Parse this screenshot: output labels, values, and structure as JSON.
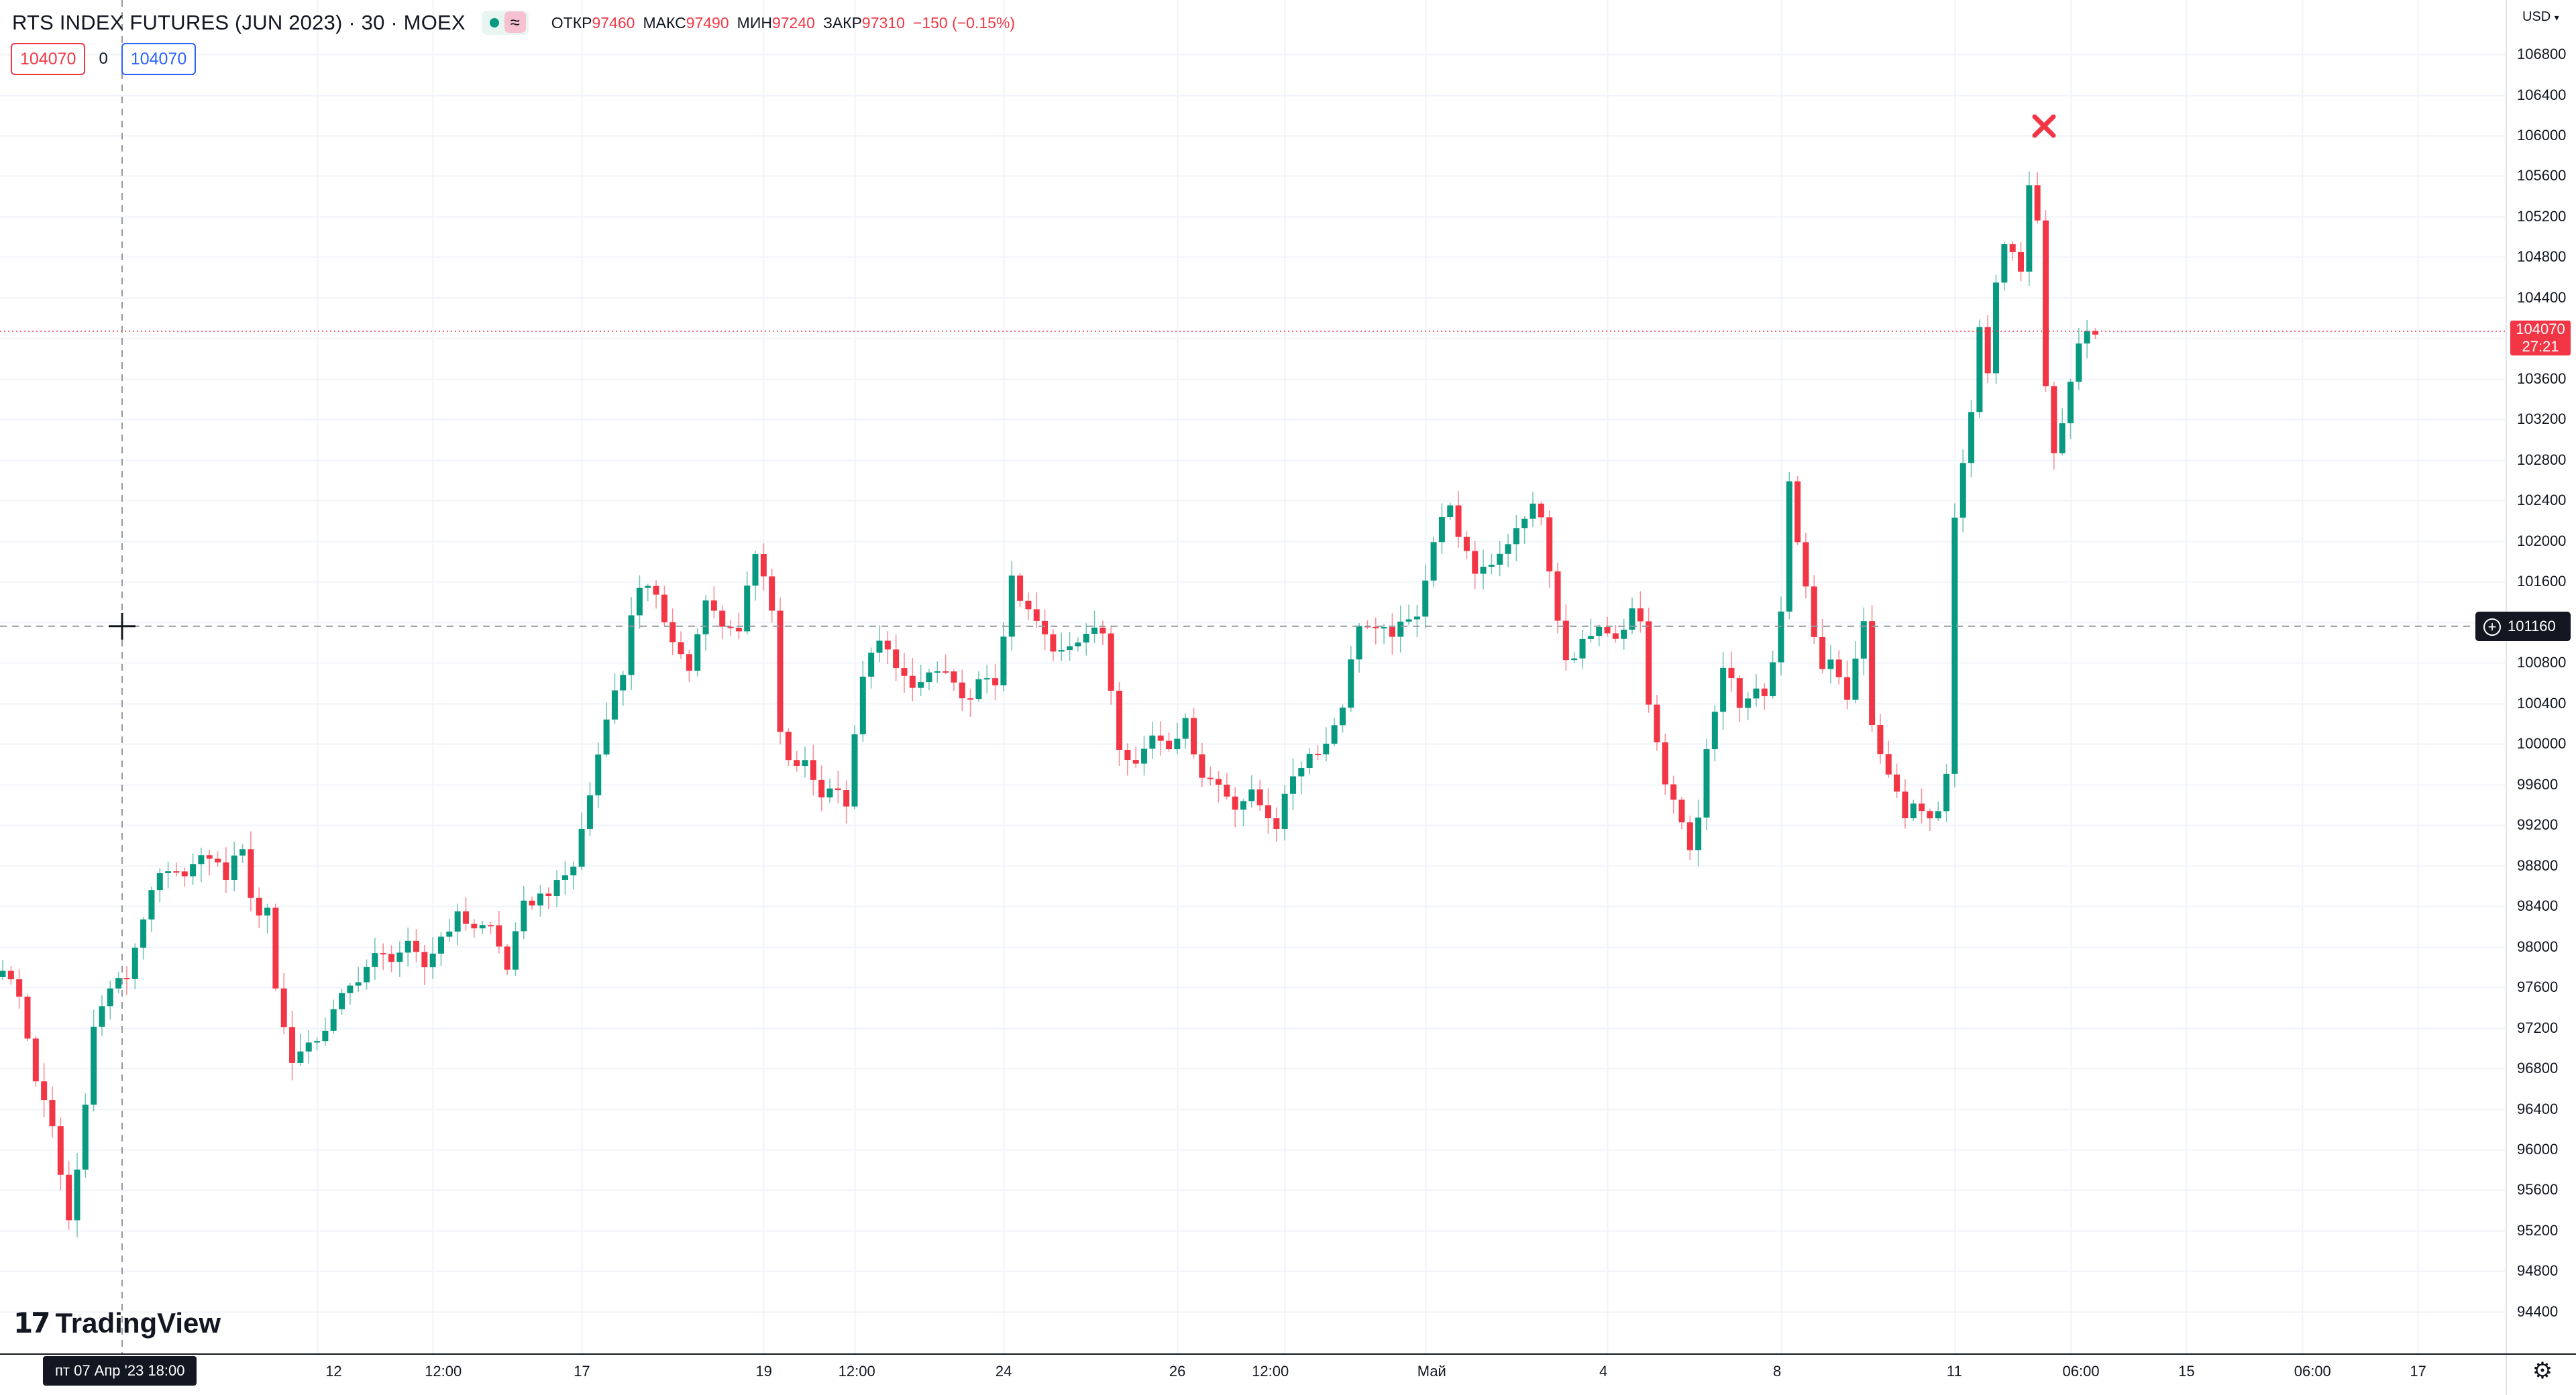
{
  "header": {
    "title": "RTS INDEX FUTURES (JUN 2023) · 30 · MOEX",
    "approx_symbol": "≈",
    "ohlc": [
      {
        "key": "ОТКР",
        "value": "97460"
      },
      {
        "key": "МАКС",
        "value": "97490"
      },
      {
        "key": "МИН",
        "value": "97240"
      },
      {
        "key": "ЗАКР",
        "value": "97310"
      }
    ],
    "change": "−150 (−0.15%)"
  },
  "trade": {
    "sell_price": "104070",
    "spread": "0",
    "buy_price": "104070"
  },
  "price_scale": {
    "currency": "USD",
    "last_price": "104070",
    "countdown": "27:21",
    "crosshair_price": "101160"
  },
  "time_scale": {
    "crosshair_time": "пт 07 Апр '23   18:00"
  },
  "brand": {
    "name": "TradingView"
  },
  "colors": {
    "up": "#089981",
    "down": "#f23645",
    "grid": "#f0f3fa",
    "crosshair": "#9598a1"
  },
  "icons": {
    "settings": "gear-icon",
    "marker": "close-icon",
    "crosshair": "crosshair-icon"
  },
  "chart_data": {
    "type": "candlestick",
    "title": "RTS INDEX FUTURES (JUN 2023) · 30 · MOEX",
    "timeframe": "30",
    "ylim": [
      94000,
      107200
    ],
    "y_ticks": [
      94400,
      94800,
      95200,
      95600,
      96000,
      96400,
      96800,
      97200,
      97600,
      98000,
      98400,
      98800,
      99200,
      99600,
      100000,
      100400,
      100800,
      101200,
      101600,
      102000,
      102400,
      102800,
      103200,
      103600,
      104000,
      104400,
      104800,
      105200,
      105600,
      106000,
      106400,
      106800
    ],
    "y_tick_labels": [
      "94400",
      "94800",
      "95200",
      "95600",
      "96000",
      "96400",
      "96800",
      "97200",
      "97600",
      "98000",
      "98400",
      "98800",
      "99200",
      "99600",
      "100000",
      "100400",
      "100800",
      "",
      "101600",
      "102000",
      "102400",
      "102800",
      "103200",
      "103600",
      "",
      "104400",
      "104800",
      "105200",
      "105600",
      "106000",
      "106400",
      "106800"
    ],
    "x_labels": [
      "12",
      "12:00",
      "17",
      "19",
      "12:00",
      "24",
      "26",
      "12:00",
      "Май",
      "4",
      "8",
      "11",
      "06:00",
      "15",
      "06:00",
      "17"
    ],
    "x_label_bar_index": [
      40,
      52,
      70,
      92,
      102,
      121,
      142,
      152,
      172,
      194,
      215,
      236,
      250,
      264,
      278,
      292
    ],
    "x_grid_bar_index": [
      38,
      52,
      70,
      92,
      103,
      121,
      142,
      155,
      172,
      194,
      215,
      236,
      250,
      264,
      278,
      292
    ],
    "price_path": [
      [
        0,
        97700
      ],
      [
        1,
        97800
      ],
      [
        3,
        97500
      ],
      [
        5,
        96700
      ],
      [
        7,
        96200
      ],
      [
        9,
        95300
      ],
      [
        10,
        95800
      ],
      [
        12,
        97200
      ],
      [
        14,
        97600
      ],
      [
        16,
        97700
      ],
      [
        18,
        98300
      ],
      [
        20,
        98700
      ],
      [
        22,
        98700
      ],
      [
        24,
        98800
      ],
      [
        26,
        98900
      ],
      [
        28,
        98700
      ],
      [
        30,
        99000
      ],
      [
        31,
        98500
      ],
      [
        32,
        98300
      ],
      [
        33,
        98400
      ],
      [
        34,
        97600
      ],
      [
        35,
        97200
      ],
      [
        36,
        96900
      ],
      [
        38,
        97000
      ],
      [
        40,
        97200
      ],
      [
        42,
        97500
      ],
      [
        44,
        97700
      ],
      [
        46,
        97900
      ],
      [
        48,
        97900
      ],
      [
        50,
        98000
      ],
      [
        52,
        97800
      ],
      [
        54,
        98100
      ],
      [
        56,
        98300
      ],
      [
        58,
        98200
      ],
      [
        60,
        98200
      ],
      [
        62,
        97800
      ],
      [
        64,
        98400
      ],
      [
        66,
        98500
      ],
      [
        68,
        98600
      ],
      [
        70,
        98800
      ],
      [
        72,
        99500
      ],
      [
        74,
        100300
      ],
      [
        76,
        100700
      ],
      [
        77,
        101300
      ],
      [
        78,
        101500
      ],
      [
        80,
        101500
      ],
      [
        82,
        101000
      ],
      [
        83,
        100900
      ],
      [
        84,
        100700
      ],
      [
        86,
        101400
      ],
      [
        88,
        101200
      ],
      [
        90,
        101100
      ],
      [
        91,
        101600
      ],
      [
        92,
        101900
      ],
      [
        93,
        101600
      ],
      [
        94,
        101300
      ],
      [
        95,
        100100
      ],
      [
        96,
        99800
      ],
      [
        98,
        99800
      ],
      [
        100,
        99500
      ],
      [
        102,
        99600
      ],
      [
        103,
        99400
      ],
      [
        105,
        100700
      ],
      [
        107,
        101000
      ],
      [
        109,
        100800
      ],
      [
        111,
        100500
      ],
      [
        113,
        100700
      ],
      [
        115,
        100700
      ],
      [
        117,
        100400
      ],
      [
        119,
        100600
      ],
      [
        121,
        100600
      ],
      [
        123,
        101600
      ],
      [
        124,
        101400
      ],
      [
        126,
        101200
      ],
      [
        128,
        100900
      ],
      [
        130,
        101000
      ],
      [
        132,
        101100
      ],
      [
        134,
        101100
      ],
      [
        136,
        100000
      ],
      [
        138,
        99800
      ],
      [
        140,
        100100
      ],
      [
        142,
        100000
      ],
      [
        144,
        100200
      ],
      [
        146,
        99700
      ],
      [
        148,
        99600
      ],
      [
        150,
        99400
      ],
      [
        152,
        99500
      ],
      [
        154,
        99300
      ],
      [
        155,
        99200
      ],
      [
        157,
        99700
      ],
      [
        159,
        99900
      ],
      [
        161,
        100000
      ],
      [
        163,
        100400
      ],
      [
        165,
        101200
      ],
      [
        167,
        101100
      ],
      [
        169,
        101100
      ],
      [
        171,
        101200
      ],
      [
        172,
        101300
      ],
      [
        174,
        102000
      ],
      [
        176,
        102400
      ],
      [
        177,
        102000
      ],
      [
        179,
        101700
      ],
      [
        181,
        101800
      ],
      [
        183,
        102000
      ],
      [
        185,
        102200
      ],
      [
        186,
        102400
      ],
      [
        187,
        102200
      ],
      [
        189,
        101200
      ],
      [
        190,
        100800
      ],
      [
        192,
        101000
      ],
      [
        194,
        101100
      ],
      [
        196,
        101000
      ],
      [
        197,
        101100
      ],
      [
        198,
        101300
      ],
      [
        199,
        101200
      ],
      [
        200,
        100400
      ],
      [
        201,
        100000
      ],
      [
        202,
        99600
      ],
      [
        203,
        99400
      ],
      [
        204,
        99200
      ],
      [
        205,
        99000
      ],
      [
        206,
        99300
      ],
      [
        207,
        99900
      ],
      [
        208,
        100300
      ],
      [
        209,
        100700
      ],
      [
        210,
        100700
      ],
      [
        211,
        100400
      ],
      [
        212,
        100500
      ],
      [
        213,
        100600
      ],
      [
        214,
        100500
      ],
      [
        215,
        100800
      ],
      [
        216,
        101300
      ],
      [
        217,
        102600
      ],
      [
        218,
        102000
      ],
      [
        219,
        101500
      ],
      [
        220,
        101100
      ],
      [
        221,
        100700
      ],
      [
        222,
        100800
      ],
      [
        223,
        100600
      ],
      [
        224,
        100400
      ],
      [
        225,
        100800
      ],
      [
        226,
        101200
      ],
      [
        227,
        100200
      ],
      [
        228,
        99900
      ],
      [
        229,
        99700
      ],
      [
        230,
        99500
      ],
      [
        231,
        99300
      ],
      [
        232,
        99400
      ],
      [
        234,
        99300
      ],
      [
        235,
        99300
      ],
      [
        236,
        99700
      ],
      [
        237,
        102200
      ],
      [
        238,
        102800
      ],
      [
        239,
        103300
      ],
      [
        240,
        104100
      ],
      [
        241,
        103600
      ],
      [
        242,
        104500
      ],
      [
        243,
        104900
      ],
      [
        244,
        104900
      ],
      [
        245,
        104600
      ],
      [
        246,
        105500
      ],
      [
        247,
        105200
      ],
      [
        248,
        103500
      ],
      [
        249,
        102900
      ],
      [
        250,
        103200
      ],
      [
        251,
        103600
      ],
      [
        252,
        104000
      ],
      [
        253,
        104070
      ]
    ],
    "last_price": 104070,
    "crosshair": {
      "price": 101160,
      "time": "пт 07 Апр '23 18:00"
    }
  }
}
